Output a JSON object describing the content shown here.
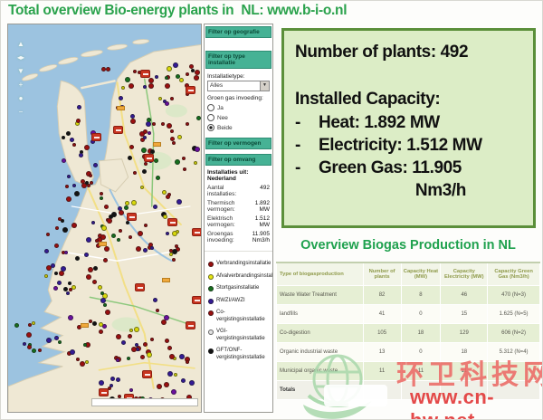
{
  "title": "Total overview Bio-energy plants in  NL: www.b-i-o.nl",
  "colors": {
    "accent_green": "#2aa24c",
    "info_box_bg": "#dcedc6",
    "info_box_border": "#5b8f3a",
    "panel_header_teal": "#46b295",
    "table_row_green": "#e6efd4"
  },
  "info_box": {
    "plants_line": "Number of plants: 492",
    "capacity_title": "Installed Capacity:",
    "bullet_prefix": "-",
    "bullets": [
      "Heat: 1.892 MW",
      "Electricity: 1.512 MW",
      "Green Gas: 11.905"
    ],
    "unit_line": "Nm3/h"
  },
  "filter_panel": {
    "header_geography": "Filter op geografie",
    "header_type": "Filter op type installatie",
    "header_power": "Filter op vermogen",
    "header_size": "Filter op omvang",
    "installation_type_label": "Installatietype:",
    "installation_type_value": "Alles",
    "green_gas_label": "Groen gas invoeding:",
    "radios": [
      {
        "label": "Ja",
        "selected": false
      },
      {
        "label": "Nee",
        "selected": false
      },
      {
        "label": "Beide",
        "selected": true
      }
    ],
    "summary_title": "Installaties uit: Nederland",
    "stats": [
      {
        "label": "Aantal installaties:",
        "value": "492"
      },
      {
        "label": "Thermisch vermogen:",
        "value": "1.892 MW"
      },
      {
        "label": "Elektrisch vermogen:",
        "value": "1.512 MW"
      },
      {
        "label": "Groengas invoeding:",
        "value": "11.905 Nm3/h"
      }
    ],
    "legend": [
      {
        "color": "#9b0f0f",
        "label": "Verbrandingsinstallatie"
      },
      {
        "color": "#e6e613",
        "label": "Afvalverbrandingsinstallatie"
      },
      {
        "color": "#16701c",
        "label": "Stortgasinstallatie"
      },
      {
        "color": "#341b96",
        "label": "RWZI/AWZI"
      },
      {
        "color": "#9b0f0f",
        "label": "Co-vergistingsinstallatie"
      },
      {
        "color": "#e2e2e2",
        "label": "VGI-vergistingsinstallatie"
      },
      {
        "color": "#141414",
        "label": "GFT/ONF-vergistingsinstallatie"
      }
    ]
  },
  "biogas_table": {
    "title": "Overview Biogas Production in NL",
    "headers": [
      "Type of biogasproduction",
      "Number of plants",
      "Capacity Heat (MW)",
      "Capacity Electricity (MW)",
      "Capacity Green Gas (Nm3/h)"
    ],
    "rows": [
      [
        "Waste Water Treatment",
        "82",
        "8",
        "46",
        "470 (N=3)"
      ],
      [
        "landfills",
        "41",
        "0",
        "15",
        "1.625 (N=5)"
      ],
      [
        "Co-digestion",
        "105",
        "18",
        "129",
        "606 (N=2)"
      ],
      [
        "Organic industrial waste",
        "13",
        "0",
        "18",
        "5.312 (N=4)"
      ],
      [
        "Municipal organic waste",
        "11",
        "11",
        "11",
        ""
      ],
      [
        "Totals",
        "",
        "",
        "",
        ""
      ]
    ]
  },
  "watermark": {
    "site_name": "环卫科技网",
    "site_url": "www.cn-hw.net"
  }
}
